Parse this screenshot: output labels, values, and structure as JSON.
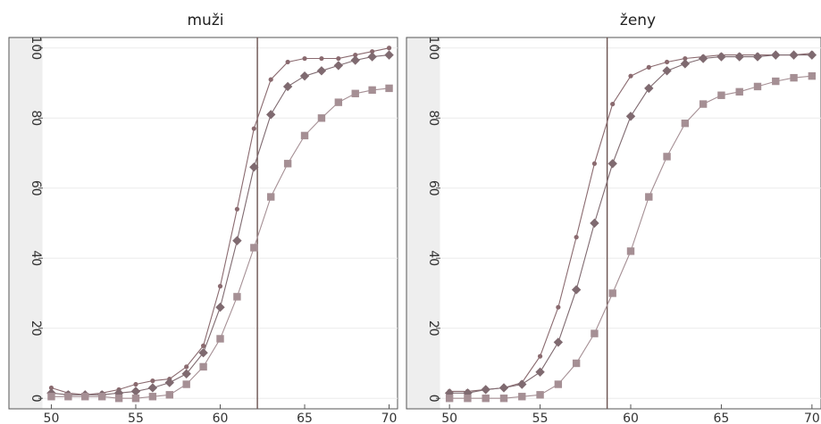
{
  "chart_data": [
    {
      "type": "line",
      "title": "muži",
      "xlabel": "",
      "ylabel": "",
      "xlim": [
        49.5,
        70.5
      ],
      "ylim": [
        -3,
        103
      ],
      "x_ticks": [
        50,
        55,
        60,
        65,
        70
      ],
      "y_ticks": [
        0,
        20,
        40,
        60,
        80,
        100
      ],
      "grid": true,
      "reference_line_x": 62.2,
      "x": [
        50,
        51,
        52,
        53,
        54,
        55,
        56,
        57,
        58,
        59,
        60,
        61,
        62,
        63,
        64,
        65,
        66,
        67,
        68,
        69,
        70
      ],
      "series": [
        {
          "marker": "circle",
          "color": "#8a6a6f",
          "values": [
            3,
            1.5,
            1,
            1.5,
            2.5,
            4,
            5,
            5.5,
            9,
            15,
            32,
            54,
            77,
            91,
            96,
            97,
            97,
            97,
            98,
            99,
            100
          ]
        },
        {
          "marker": "diamond",
          "color": "#7f6a70",
          "values": [
            1.5,
            1,
            1,
            1,
            1.5,
            2,
            3,
            4.5,
            7,
            13,
            26,
            45,
            66,
            81,
            89,
            92,
            93.5,
            95,
            96.5,
            97.5,
            98
          ]
        },
        {
          "marker": "square",
          "color": "#a58f94",
          "values": [
            0.5,
            0.5,
            0.5,
            0.5,
            0,
            0,
            0.5,
            1,
            4,
            9,
            17,
            29,
            43,
            57.5,
            67,
            75,
            80,
            84.5,
            87,
            88,
            88.5
          ]
        }
      ]
    },
    {
      "type": "line",
      "title": "ženy",
      "xlabel": "",
      "ylabel": "",
      "xlim": [
        49.5,
        70.5
      ],
      "ylim": [
        -3,
        103
      ],
      "x_ticks": [
        50,
        55,
        60,
        65,
        70
      ],
      "y_ticks": [
        0,
        20,
        40,
        60,
        80,
        100
      ],
      "grid": true,
      "reference_line_x": 58.7,
      "x": [
        50,
        51,
        52,
        53,
        54,
        55,
        56,
        57,
        58,
        59,
        60,
        61,
        62,
        63,
        64,
        65,
        66,
        67,
        68,
        69,
        70
      ],
      "series": [
        {
          "marker": "circle",
          "color": "#8a6a6f",
          "values": [
            2,
            2,
            2.5,
            3,
            4.5,
            12,
            26,
            46,
            67,
            84,
            92,
            94.5,
            96,
            97,
            97.5,
            98,
            98,
            98,
            98,
            98,
            98.5
          ]
        },
        {
          "marker": "diamond",
          "color": "#7f6a70",
          "values": [
            1.5,
            1.5,
            2.5,
            3,
            4,
            7.5,
            16,
            31,
            50,
            67,
            80.5,
            88.5,
            93.5,
            95.5,
            97,
            97.5,
            97.5,
            97.5,
            98,
            98,
            98
          ]
        },
        {
          "marker": "square",
          "color": "#a58f94",
          "values": [
            0,
            0,
            0,
            0,
            0.5,
            1,
            4,
            10,
            18.5,
            30,
            42,
            57.5,
            69,
            78.5,
            84,
            86.5,
            87.5,
            89,
            90.5,
            91.5,
            92
          ]
        }
      ]
    }
  ]
}
